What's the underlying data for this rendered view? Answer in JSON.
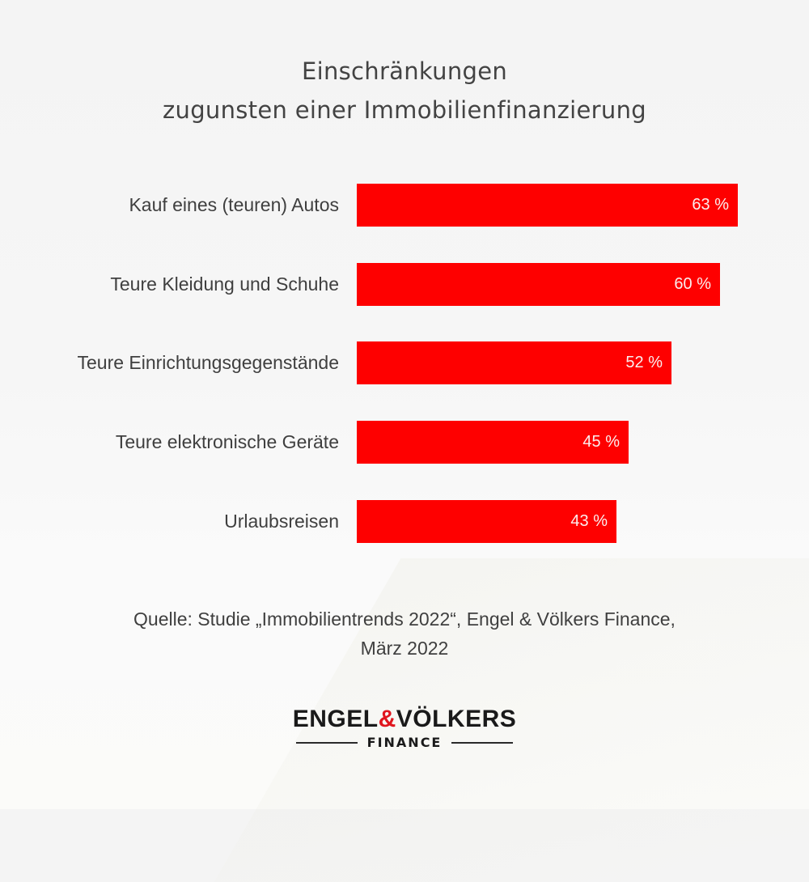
{
  "chart_data": {
    "type": "bar",
    "orientation": "horizontal",
    "title": "Einschränkungen zugunsten einer Immobilienfinanzierung",
    "categories": [
      "Kauf eines (teuren) Autos",
      "Teure Kleidung und Schuhe",
      "Teure Einrichtungsgegenstände",
      "Teure elektronische Geräte",
      "Urlaubsreisen"
    ],
    "values": [
      63,
      60,
      52,
      45,
      43
    ],
    "value_labels": [
      "63 %",
      "60 %",
      "52 %",
      "45 %",
      "43 %"
    ],
    "unit": "%",
    "xlabel": "",
    "ylabel": "",
    "grid": false,
    "legend": null,
    "bar_color": "#fe0000"
  },
  "header": {
    "title_line1": "Einschränkungen",
    "title_line2": "zugunsten einer Immobilienfinanzierung"
  },
  "footer": {
    "source_line1": "Quelle: Studie „Immobilientrends 2022“, Engel & Völkers Finance,",
    "source_line2": "März 2022"
  },
  "logo": {
    "part1": "ENGEL",
    "amp": "&",
    "part2": "VÖLKERS",
    "sub": "FINANCE",
    "accent_color": "#e0161e"
  }
}
